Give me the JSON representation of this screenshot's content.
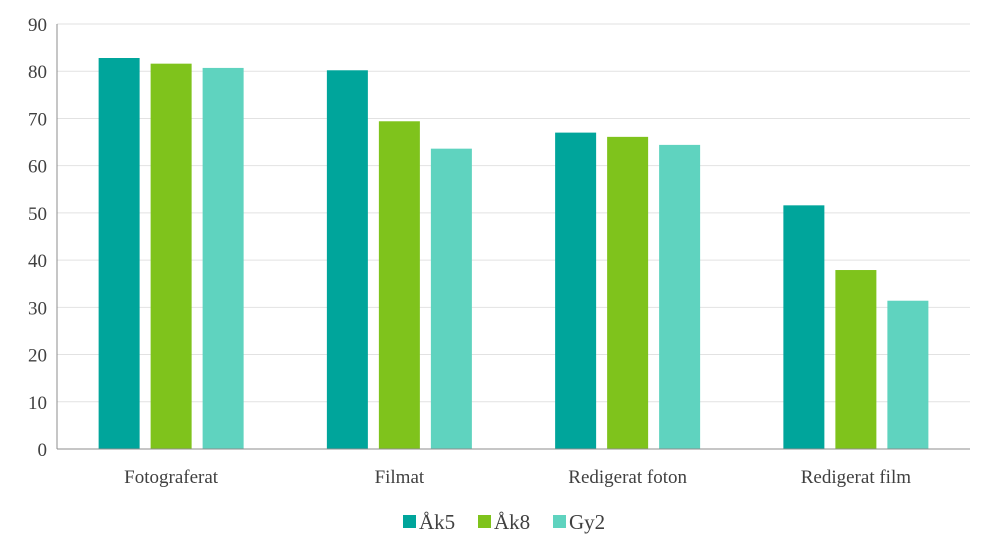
{
  "chart_data": {
    "type": "bar",
    "categories": [
      "Fotograferat",
      "Filmat",
      "Redigerat foton",
      "Redigerat film"
    ],
    "series": [
      {
        "name": "Åk5",
        "color": "#00a59b",
        "values": [
          82.8,
          80.2,
          67.0,
          51.6
        ]
      },
      {
        "name": "Åk8",
        "color": "#7fc31c",
        "values": [
          81.6,
          69.4,
          66.1,
          37.9
        ]
      },
      {
        "name": "Gy2",
        "color": "#5fd3bf",
        "values": [
          80.7,
          63.6,
          64.4,
          31.4
        ]
      }
    ],
    "ylim": [
      0,
      90
    ],
    "yticks": [
      0,
      10,
      20,
      30,
      40,
      50,
      60,
      70,
      80,
      90
    ],
    "grid": true,
    "legend_position": "bottom",
    "title": "",
    "xlabel": "",
    "ylabel": ""
  }
}
